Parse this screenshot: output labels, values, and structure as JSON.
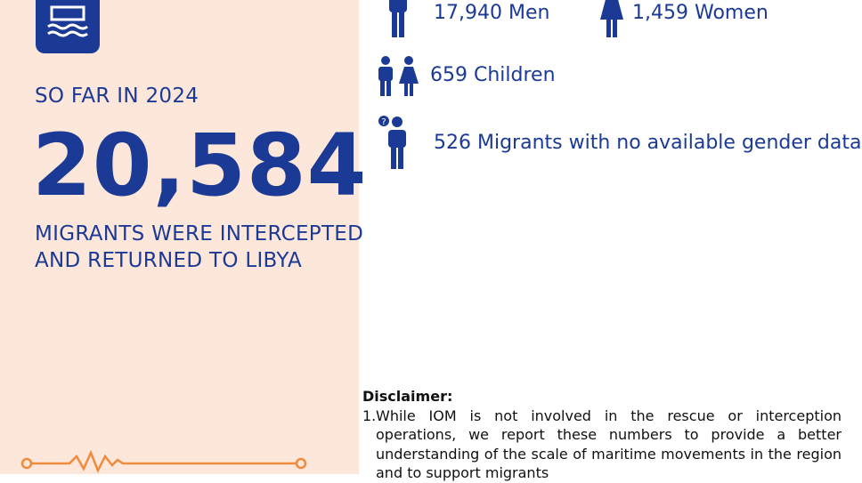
{
  "left": {
    "subtitle": "SO FAR IN 2024",
    "total": "20,584",
    "caption_lines": [
      "MIGRANTS WERE INTERCEPTED",
      "AND RETURNED TO LIBYA"
    ]
  },
  "stats": [
    {
      "label": "17,940 Men"
    },
    {
      "label": "1,459 Women"
    },
    {
      "label": "659 Children"
    },
    {
      "label": "526 Migrants with no available gender data"
    }
  ],
  "disclaimer": {
    "title": "Disclaimer:",
    "items": [
      {
        "number": "1.",
        "text": "While IOM is not involved in the rescue or interception operations, we report these numbers to provide a better understanding of the scale of maritime movements in the region and to support migrants"
      }
    ]
  }
}
